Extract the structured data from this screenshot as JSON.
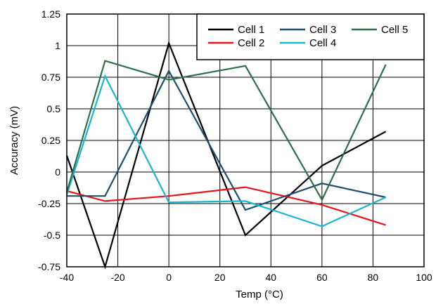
{
  "chart_data": {
    "type": "line",
    "title": "",
    "xlabel": "Temp (°C)",
    "ylabel": "Accuracy (mV)",
    "xlim": [
      -40,
      100
    ],
    "ylim": [
      -0.75,
      1.25
    ],
    "xticks": [
      -40,
      -20,
      0,
      20,
      40,
      60,
      80,
      100
    ],
    "yticks": [
      -0.75,
      -0.5,
      -0.25,
      0,
      0.25,
      0.5,
      0.75,
      1,
      1.25
    ],
    "xtick_labels": [
      "-40",
      "-20",
      "0",
      "20",
      "40",
      "60",
      "80",
      "100"
    ],
    "ytick_labels": [
      "-0.75",
      "-0.5",
      "-0.25",
      "0",
      "0.25",
      "0.5",
      "0.75",
      "1",
      "1.25"
    ],
    "grid": true,
    "legend_position": "top-right",
    "x": [
      -40,
      -25,
      0,
      30,
      60,
      85
    ],
    "series": [
      {
        "name": "Cell 1",
        "color": "#000000",
        "values": [
          0.13,
          -0.75,
          1.02,
          -0.5,
          0.05,
          0.32
        ]
      },
      {
        "name": "Cell 2",
        "color": "#e8141c",
        "values": [
          -0.15,
          -0.23,
          -0.19,
          -0.12,
          -0.26,
          -0.42
        ]
      },
      {
        "name": "Cell 3",
        "color": "#1c4f6b",
        "values": [
          -0.19,
          -0.19,
          0.8,
          -0.3,
          -0.09,
          -0.2
        ]
      },
      {
        "name": "Cell 4",
        "color": "#1ab5cf",
        "values": [
          -0.18,
          0.76,
          -0.24,
          -0.23,
          -0.43,
          -0.2
        ]
      },
      {
        "name": "Cell 5",
        "color": "#2e6e4c",
        "values": [
          -0.16,
          0.88,
          0.73,
          0.84,
          -0.22,
          0.85
        ]
      }
    ]
  }
}
